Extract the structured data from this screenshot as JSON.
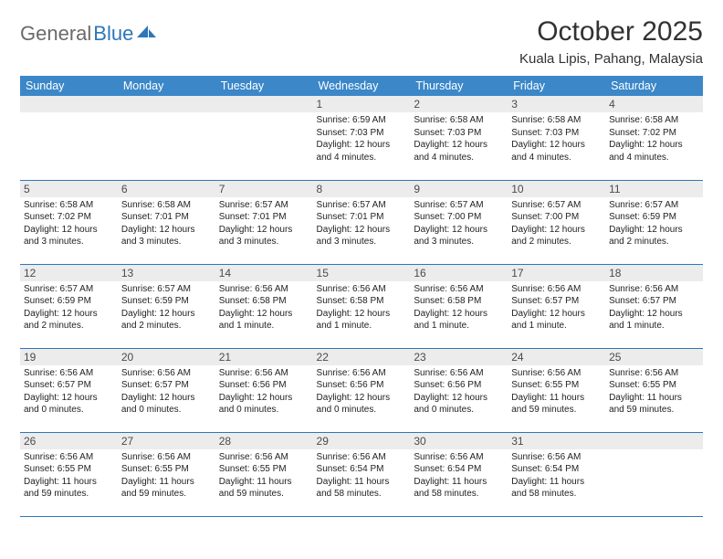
{
  "logo": {
    "text1": "General",
    "text2": "Blue"
  },
  "title": "October 2025",
  "location": "Kuala Lipis, Pahang, Malaysia",
  "colors": {
    "header_bg": "#3b87c8",
    "header_text": "#ffffff",
    "border": "#2e77b8",
    "daynum_bg": "#ececec",
    "daynum_text": "#4a4a4a",
    "body_text": "#222222",
    "logo_gray": "#6a6a6a",
    "logo_blue": "#2e77b8"
  },
  "weekdays": [
    "Sunday",
    "Monday",
    "Tuesday",
    "Wednesday",
    "Thursday",
    "Friday",
    "Saturday"
  ],
  "weeks": [
    [
      {
        "n": "",
        "lines": []
      },
      {
        "n": "",
        "lines": []
      },
      {
        "n": "",
        "lines": []
      },
      {
        "n": "1",
        "lines": [
          "Sunrise: 6:59 AM",
          "Sunset: 7:03 PM",
          "Daylight: 12 hours and 4 minutes."
        ]
      },
      {
        "n": "2",
        "lines": [
          "Sunrise: 6:58 AM",
          "Sunset: 7:03 PM",
          "Daylight: 12 hours and 4 minutes."
        ]
      },
      {
        "n": "3",
        "lines": [
          "Sunrise: 6:58 AM",
          "Sunset: 7:03 PM",
          "Daylight: 12 hours and 4 minutes."
        ]
      },
      {
        "n": "4",
        "lines": [
          "Sunrise: 6:58 AM",
          "Sunset: 7:02 PM",
          "Daylight: 12 hours and 4 minutes."
        ]
      }
    ],
    [
      {
        "n": "5",
        "lines": [
          "Sunrise: 6:58 AM",
          "Sunset: 7:02 PM",
          "Daylight: 12 hours and 3 minutes."
        ]
      },
      {
        "n": "6",
        "lines": [
          "Sunrise: 6:58 AM",
          "Sunset: 7:01 PM",
          "Daylight: 12 hours and 3 minutes."
        ]
      },
      {
        "n": "7",
        "lines": [
          "Sunrise: 6:57 AM",
          "Sunset: 7:01 PM",
          "Daylight: 12 hours and 3 minutes."
        ]
      },
      {
        "n": "8",
        "lines": [
          "Sunrise: 6:57 AM",
          "Sunset: 7:01 PM",
          "Daylight: 12 hours and 3 minutes."
        ]
      },
      {
        "n": "9",
        "lines": [
          "Sunrise: 6:57 AM",
          "Sunset: 7:00 PM",
          "Daylight: 12 hours and 3 minutes."
        ]
      },
      {
        "n": "10",
        "lines": [
          "Sunrise: 6:57 AM",
          "Sunset: 7:00 PM",
          "Daylight: 12 hours and 2 minutes."
        ]
      },
      {
        "n": "11",
        "lines": [
          "Sunrise: 6:57 AM",
          "Sunset: 6:59 PM",
          "Daylight: 12 hours and 2 minutes."
        ]
      }
    ],
    [
      {
        "n": "12",
        "lines": [
          "Sunrise: 6:57 AM",
          "Sunset: 6:59 PM",
          "Daylight: 12 hours and 2 minutes."
        ]
      },
      {
        "n": "13",
        "lines": [
          "Sunrise: 6:57 AM",
          "Sunset: 6:59 PM",
          "Daylight: 12 hours and 2 minutes."
        ]
      },
      {
        "n": "14",
        "lines": [
          "Sunrise: 6:56 AM",
          "Sunset: 6:58 PM",
          "Daylight: 12 hours and 1 minute."
        ]
      },
      {
        "n": "15",
        "lines": [
          "Sunrise: 6:56 AM",
          "Sunset: 6:58 PM",
          "Daylight: 12 hours and 1 minute."
        ]
      },
      {
        "n": "16",
        "lines": [
          "Sunrise: 6:56 AM",
          "Sunset: 6:58 PM",
          "Daylight: 12 hours and 1 minute."
        ]
      },
      {
        "n": "17",
        "lines": [
          "Sunrise: 6:56 AM",
          "Sunset: 6:57 PM",
          "Daylight: 12 hours and 1 minute."
        ]
      },
      {
        "n": "18",
        "lines": [
          "Sunrise: 6:56 AM",
          "Sunset: 6:57 PM",
          "Daylight: 12 hours and 1 minute."
        ]
      }
    ],
    [
      {
        "n": "19",
        "lines": [
          "Sunrise: 6:56 AM",
          "Sunset: 6:57 PM",
          "Daylight: 12 hours and 0 minutes."
        ]
      },
      {
        "n": "20",
        "lines": [
          "Sunrise: 6:56 AM",
          "Sunset: 6:57 PM",
          "Daylight: 12 hours and 0 minutes."
        ]
      },
      {
        "n": "21",
        "lines": [
          "Sunrise: 6:56 AM",
          "Sunset: 6:56 PM",
          "Daylight: 12 hours and 0 minutes."
        ]
      },
      {
        "n": "22",
        "lines": [
          "Sunrise: 6:56 AM",
          "Sunset: 6:56 PM",
          "Daylight: 12 hours and 0 minutes."
        ]
      },
      {
        "n": "23",
        "lines": [
          "Sunrise: 6:56 AM",
          "Sunset: 6:56 PM",
          "Daylight: 12 hours and 0 minutes."
        ]
      },
      {
        "n": "24",
        "lines": [
          "Sunrise: 6:56 AM",
          "Sunset: 6:55 PM",
          "Daylight: 11 hours and 59 minutes."
        ]
      },
      {
        "n": "25",
        "lines": [
          "Sunrise: 6:56 AM",
          "Sunset: 6:55 PM",
          "Daylight: 11 hours and 59 minutes."
        ]
      }
    ],
    [
      {
        "n": "26",
        "lines": [
          "Sunrise: 6:56 AM",
          "Sunset: 6:55 PM",
          "Daylight: 11 hours and 59 minutes."
        ]
      },
      {
        "n": "27",
        "lines": [
          "Sunrise: 6:56 AM",
          "Sunset: 6:55 PM",
          "Daylight: 11 hours and 59 minutes."
        ]
      },
      {
        "n": "28",
        "lines": [
          "Sunrise: 6:56 AM",
          "Sunset: 6:55 PM",
          "Daylight: 11 hours and 59 minutes."
        ]
      },
      {
        "n": "29",
        "lines": [
          "Sunrise: 6:56 AM",
          "Sunset: 6:54 PM",
          "Daylight: 11 hours and 58 minutes."
        ]
      },
      {
        "n": "30",
        "lines": [
          "Sunrise: 6:56 AM",
          "Sunset: 6:54 PM",
          "Daylight: 11 hours and 58 minutes."
        ]
      },
      {
        "n": "31",
        "lines": [
          "Sunrise: 6:56 AM",
          "Sunset: 6:54 PM",
          "Daylight: 11 hours and 58 minutes."
        ]
      },
      {
        "n": "",
        "lines": []
      }
    ]
  ]
}
